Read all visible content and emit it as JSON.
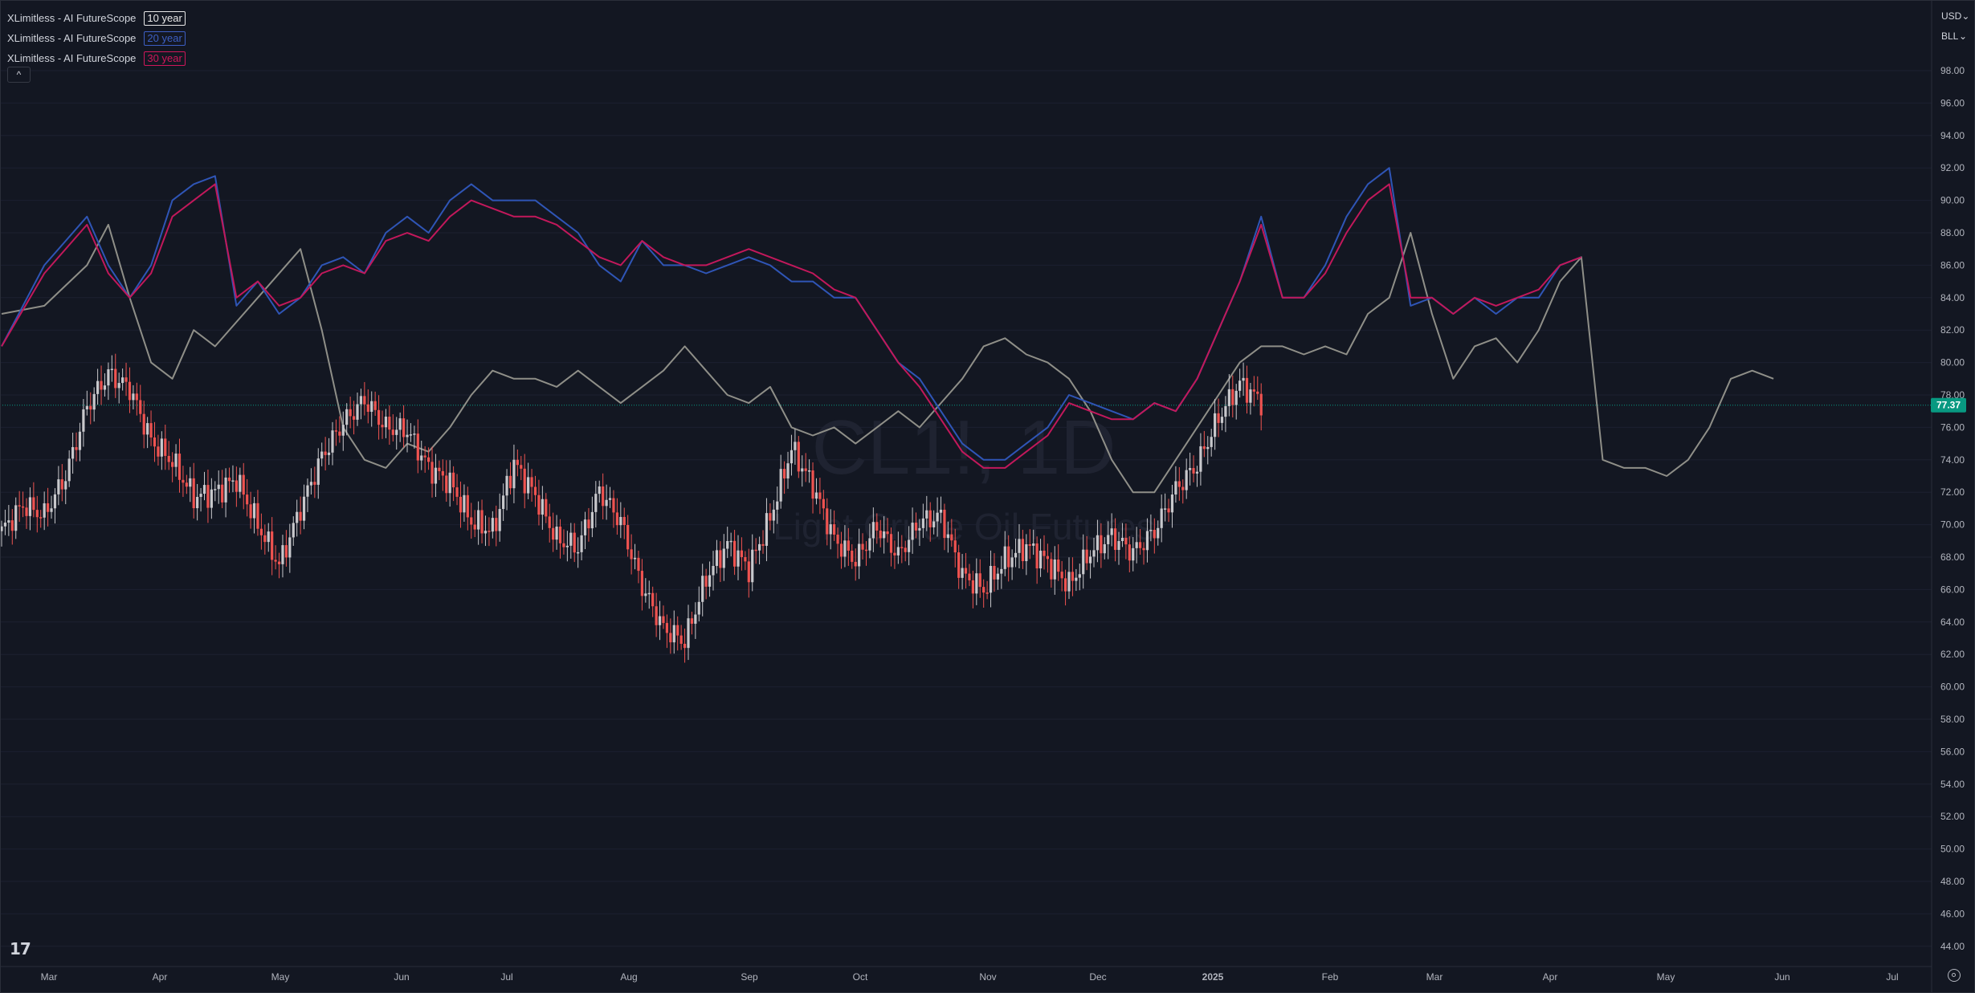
{
  "legend": [
    {
      "name": "XLimitless - AI FutureScope",
      "badge": "10 year",
      "color": "#e8e8e8"
    },
    {
      "name": "XLimitless - AI FutureScope",
      "badge": "20 year",
      "color": "#3d5fc4"
    },
    {
      "name": "XLimitless - AI FutureScope",
      "badge": "30 year",
      "color": "#d0175a"
    }
  ],
  "controls": {
    "collapse": "^",
    "currency": "USD",
    "unit": "BLL",
    "chevron": "⌄"
  },
  "watermark": {
    "symbol": "CL1!, 1D",
    "description": "Light Crude Oil Futures"
  },
  "logo": "17",
  "chart_data": {
    "type": "candlestick",
    "y_ticks": [
      98,
      96,
      94,
      92,
      90,
      88,
      86,
      84,
      82,
      80,
      78,
      76,
      74,
      72,
      70,
      68,
      66,
      64,
      62,
      60,
      58,
      56,
      54,
      52,
      50,
      48,
      46,
      44
    ],
    "ylim": [
      43,
      99.5
    ],
    "x_ticks": [
      "Mar",
      "Apr",
      "May",
      "Jun",
      "Jul",
      "Aug",
      "Sep",
      "Oct",
      "Nov",
      "Dec",
      "2025",
      "Feb",
      "Mar",
      "Apr",
      "May",
      "Jun",
      "Jul"
    ],
    "last_price": 77.37,
    "colors": {
      "up": "#c8c8cc",
      "down": "#ef5350",
      "price_line": "#089981",
      "grid": "#1c2030"
    },
    "candles": [
      {
        "t": 0,
        "c": 69.6
      },
      {
        "t": 6,
        "c": 71.2
      },
      {
        "t": 12,
        "c": 70.6
      },
      {
        "t": 18,
        "c": 73.0
      },
      {
        "t": 24,
        "c": 77.3
      },
      {
        "t": 30,
        "c": 79.3
      },
      {
        "t": 36,
        "c": 78.4
      },
      {
        "t": 42,
        "c": 75.2
      },
      {
        "t": 48,
        "c": 73.9
      },
      {
        "t": 54,
        "c": 71.7
      },
      {
        "t": 60,
        "c": 72.0
      },
      {
        "t": 66,
        "c": 72.8
      },
      {
        "t": 72,
        "c": 70.0
      },
      {
        "t": 78,
        "c": 67.5
      },
      {
        "t": 84,
        "c": 71.0
      },
      {
        "t": 90,
        "c": 74.2
      },
      {
        "t": 96,
        "c": 76.3
      },
      {
        "t": 102,
        "c": 77.7
      },
      {
        "t": 108,
        "c": 76.0
      },
      {
        "t": 114,
        "c": 75.8
      },
      {
        "t": 120,
        "c": 73.5
      },
      {
        "t": 126,
        "c": 72.6
      },
      {
        "t": 132,
        "c": 70.2
      },
      {
        "t": 138,
        "c": 69.6
      },
      {
        "t": 144,
        "c": 73.8
      },
      {
        "t": 150,
        "c": 71.8
      },
      {
        "t": 156,
        "c": 69.1
      },
      {
        "t": 162,
        "c": 68.6
      },
      {
        "t": 168,
        "c": 72.1
      },
      {
        "t": 174,
        "c": 70.2
      },
      {
        "t": 180,
        "c": 66.2
      },
      {
        "t": 186,
        "c": 63.6
      },
      {
        "t": 192,
        "c": 62.8
      },
      {
        "t": 198,
        "c": 66.7
      },
      {
        "t": 204,
        "c": 68.8
      },
      {
        "t": 210,
        "c": 67.3
      },
      {
        "t": 216,
        "c": 70.4
      },
      {
        "t": 222,
        "c": 74.7
      },
      {
        "t": 228,
        "c": 72.4
      },
      {
        "t": 234,
        "c": 69.1
      },
      {
        "t": 240,
        "c": 67.8
      },
      {
        "t": 246,
        "c": 69.9
      },
      {
        "t": 252,
        "c": 68.1
      },
      {
        "t": 258,
        "c": 70.2
      },
      {
        "t": 264,
        "c": 70.5
      },
      {
        "t": 270,
        "c": 66.9
      },
      {
        "t": 276,
        "c": 66.0
      },
      {
        "t": 282,
        "c": 67.8
      },
      {
        "t": 288,
        "c": 68.7
      },
      {
        "t": 294,
        "c": 67.7
      },
      {
        "t": 300,
        "c": 66.3
      },
      {
        "t": 306,
        "c": 68.3
      },
      {
        "t": 312,
        "c": 69.3
      },
      {
        "t": 318,
        "c": 68.3
      },
      {
        "t": 324,
        "c": 69.6
      },
      {
        "t": 330,
        "c": 72.2
      },
      {
        "t": 336,
        "c": 73.7
      },
      {
        "t": 342,
        "c": 76.6
      },
      {
        "t": 348,
        "c": 78.7
      },
      {
        "t": 354,
        "c": 77.6
      }
    ],
    "series": [
      {
        "name": "10 year",
        "color": "#8f8f88",
        "points": [
          [
            0,
            83
          ],
          [
            12,
            83.5
          ],
          [
            24,
            86
          ],
          [
            30,
            88.5
          ],
          [
            36,
            84
          ],
          [
            42,
            80
          ],
          [
            48,
            79
          ],
          [
            54,
            82
          ],
          [
            60,
            81
          ],
          [
            72,
            84
          ],
          [
            84,
            87
          ],
          [
            90,
            82
          ],
          [
            96,
            76
          ],
          [
            102,
            74
          ],
          [
            108,
            73.5
          ],
          [
            114,
            75
          ],
          [
            120,
            74.5
          ],
          [
            126,
            76
          ],
          [
            132,
            78
          ],
          [
            138,
            79.5
          ],
          [
            144,
            79
          ],
          [
            150,
            79
          ],
          [
            156,
            78.5
          ],
          [
            162,
            79.5
          ],
          [
            168,
            78.5
          ],
          [
            174,
            77.5
          ],
          [
            180,
            78.5
          ],
          [
            186,
            79.5
          ],
          [
            192,
            81
          ],
          [
            198,
            79.5
          ],
          [
            204,
            78
          ],
          [
            210,
            77.5
          ],
          [
            216,
            78.5
          ],
          [
            222,
            76
          ],
          [
            228,
            75.5
          ],
          [
            234,
            76
          ],
          [
            240,
            75
          ],
          [
            246,
            76
          ],
          [
            252,
            77
          ],
          [
            258,
            76
          ],
          [
            264,
            77.5
          ],
          [
            270,
            79
          ],
          [
            276,
            81
          ],
          [
            282,
            81.5
          ],
          [
            288,
            80.5
          ],
          [
            294,
            80
          ],
          [
            300,
            79
          ],
          [
            306,
            77
          ],
          [
            312,
            74
          ],
          [
            318,
            72
          ],
          [
            324,
            72
          ],
          [
            330,
            74
          ],
          [
            336,
            76
          ],
          [
            342,
            78
          ],
          [
            348,
            80
          ],
          [
            354,
            81
          ],
          [
            360,
            81
          ],
          [
            366,
            80.5
          ],
          [
            372,
            81
          ],
          [
            378,
            80.5
          ],
          [
            384,
            83
          ],
          [
            390,
            84
          ],
          [
            396,
            88
          ],
          [
            402,
            83
          ],
          [
            408,
            79
          ],
          [
            414,
            81
          ],
          [
            420,
            81.5
          ],
          [
            426,
            80
          ],
          [
            432,
            82
          ],
          [
            438,
            85
          ],
          [
            444,
            86.5
          ],
          [
            450,
            74
          ],
          [
            456,
            73.5
          ],
          [
            462,
            73.5
          ],
          [
            468,
            73
          ],
          [
            474,
            74
          ],
          [
            480,
            76
          ],
          [
            486,
            79
          ],
          [
            492,
            79.5
          ],
          [
            498,
            79
          ]
        ]
      },
      {
        "name": "20 year",
        "color": "#2f55b6",
        "points": [
          [
            0,
            81
          ],
          [
            12,
            86
          ],
          [
            24,
            89
          ],
          [
            30,
            86
          ],
          [
            36,
            84
          ],
          [
            42,
            86
          ],
          [
            48,
            90
          ],
          [
            54,
            91
          ],
          [
            60,
            91.5
          ],
          [
            66,
            83.5
          ],
          [
            72,
            85
          ],
          [
            78,
            83
          ],
          [
            84,
            84
          ],
          [
            90,
            86
          ],
          [
            96,
            86.5
          ],
          [
            102,
            85.5
          ],
          [
            108,
            88
          ],
          [
            114,
            89
          ],
          [
            120,
            88
          ],
          [
            126,
            90
          ],
          [
            132,
            91
          ],
          [
            138,
            90
          ],
          [
            144,
            90
          ],
          [
            150,
            90
          ],
          [
            156,
            89
          ],
          [
            162,
            88
          ],
          [
            168,
            86
          ],
          [
            174,
            85
          ],
          [
            180,
            87.5
          ],
          [
            186,
            86
          ],
          [
            192,
            86
          ],
          [
            198,
            85.5
          ],
          [
            204,
            86
          ],
          [
            210,
            86.5
          ],
          [
            216,
            86
          ],
          [
            222,
            85
          ],
          [
            228,
            85
          ],
          [
            234,
            84
          ],
          [
            240,
            84
          ],
          [
            246,
            82
          ],
          [
            252,
            80
          ],
          [
            258,
            79
          ],
          [
            264,
            77
          ],
          [
            270,
            75
          ],
          [
            276,
            74
          ],
          [
            282,
            74
          ],
          [
            288,
            75
          ],
          [
            294,
            76
          ],
          [
            300,
            78
          ],
          [
            306,
            77.5
          ],
          [
            312,
            77
          ],
          [
            318,
            76.5
          ],
          [
            324,
            77.5
          ],
          [
            330,
            77
          ],
          [
            336,
            79
          ],
          [
            342,
            82
          ],
          [
            348,
            85
          ],
          [
            354,
            89
          ],
          [
            360,
            84
          ],
          [
            366,
            84
          ],
          [
            372,
            86
          ],
          [
            378,
            89
          ],
          [
            384,
            91
          ],
          [
            390,
            92
          ],
          [
            396,
            83.5
          ],
          [
            402,
            84
          ],
          [
            408,
            83
          ],
          [
            414,
            84
          ],
          [
            420,
            83
          ],
          [
            426,
            84
          ],
          [
            432,
            84
          ],
          [
            438,
            86
          ],
          [
            444,
            86.5
          ]
        ]
      },
      {
        "name": "30 year",
        "color": "#c2185b",
        "points": [
          [
            0,
            81
          ],
          [
            12,
            85.5
          ],
          [
            24,
            88.5
          ],
          [
            30,
            85.5
          ],
          [
            36,
            84
          ],
          [
            42,
            85.5
          ],
          [
            48,
            89
          ],
          [
            54,
            90
          ],
          [
            60,
            91
          ],
          [
            66,
            84
          ],
          [
            72,
            85
          ],
          [
            78,
            83.5
          ],
          [
            84,
            84
          ],
          [
            90,
            85.5
          ],
          [
            96,
            86
          ],
          [
            102,
            85.5
          ],
          [
            108,
            87.5
          ],
          [
            114,
            88
          ],
          [
            120,
            87.5
          ],
          [
            126,
            89
          ],
          [
            132,
            90
          ],
          [
            138,
            89.5
          ],
          [
            144,
            89
          ],
          [
            150,
            89
          ],
          [
            156,
            88.5
          ],
          [
            162,
            87.5
          ],
          [
            168,
            86.5
          ],
          [
            174,
            86
          ],
          [
            180,
            87.5
          ],
          [
            186,
            86.5
          ],
          [
            192,
            86
          ],
          [
            198,
            86
          ],
          [
            204,
            86.5
          ],
          [
            210,
            87
          ],
          [
            216,
            86.5
          ],
          [
            222,
            86
          ],
          [
            228,
            85.5
          ],
          [
            234,
            84.5
          ],
          [
            240,
            84
          ],
          [
            246,
            82
          ],
          [
            252,
            80
          ],
          [
            258,
            78.5
          ],
          [
            264,
            76.5
          ],
          [
            270,
            74.5
          ],
          [
            276,
            73.5
          ],
          [
            282,
            73.5
          ],
          [
            288,
            74.5
          ],
          [
            294,
            75.5
          ],
          [
            300,
            77.5
          ],
          [
            306,
            77
          ],
          [
            312,
            76.5
          ],
          [
            318,
            76.5
          ],
          [
            324,
            77.5
          ],
          [
            330,
            77
          ],
          [
            336,
            79
          ],
          [
            342,
            82
          ],
          [
            348,
            85
          ],
          [
            354,
            88.5
          ],
          [
            360,
            84
          ],
          [
            366,
            84
          ],
          [
            372,
            85.5
          ],
          [
            378,
            88
          ],
          [
            384,
            90
          ],
          [
            390,
            91
          ],
          [
            396,
            84
          ],
          [
            402,
            84
          ],
          [
            408,
            83
          ],
          [
            414,
            84
          ],
          [
            420,
            83.5
          ],
          [
            426,
            84
          ],
          [
            432,
            84.5
          ],
          [
            438,
            86
          ],
          [
            444,
            86.5
          ]
        ]
      }
    ]
  }
}
